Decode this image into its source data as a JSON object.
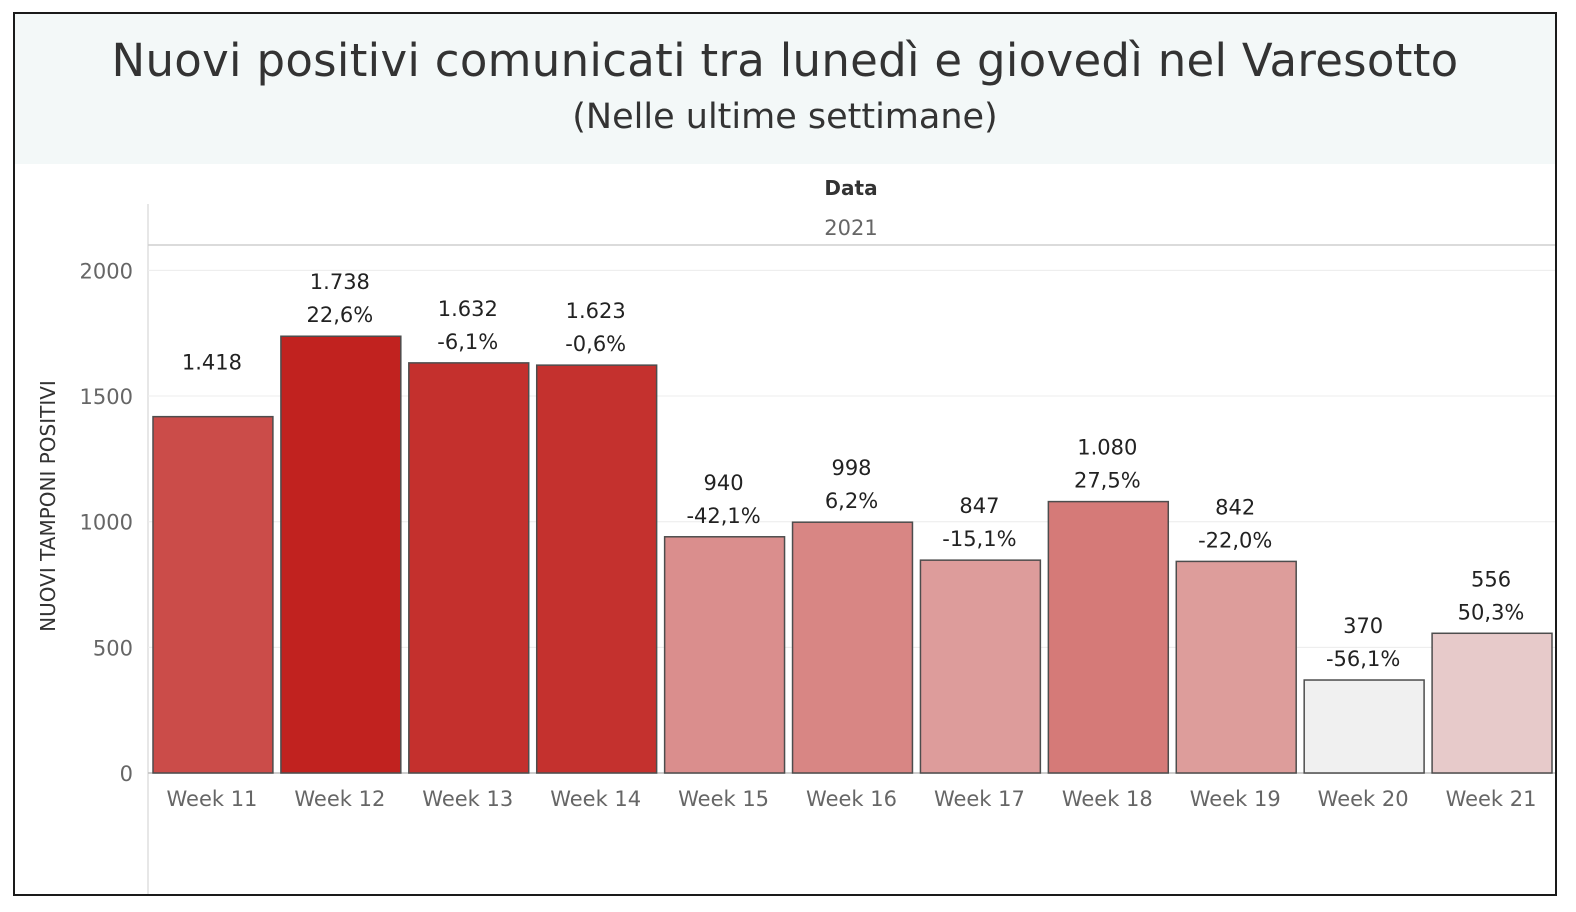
{
  "header": {
    "title": "Nuovi positivi comunicati tra lunedì e giovedì nel Varesotto",
    "subtitle": "(Nelle ultime settimane)"
  },
  "colors": {
    "header_bg": "#f3f8f8",
    "bar_stroke": "#4d4d4d",
    "max_color": "#c1221f",
    "min_color": "#f0f0f0"
  },
  "chart_data": {
    "type": "bar",
    "column_header": "Data",
    "column_value": "2021",
    "ylabel": "NUOVI TAMPONI POSITIVI",
    "xlabel": "",
    "ylim": [
      0,
      2000
    ],
    "yticks": [
      "0",
      "500",
      "1000",
      "1500",
      "2000"
    ],
    "ytick_values": [
      0,
      500,
      1000,
      1500,
      2000
    ],
    "grid": true,
    "categories": [
      "Week 11",
      "Week 12",
      "Week 13",
      "Week 14",
      "Week 15",
      "Week 16",
      "Week 17",
      "Week 18",
      "Week 19",
      "Week 20",
      "Week 21"
    ],
    "values": [
      1418,
      1738,
      1632,
      1623,
      940,
      998,
      847,
      1080,
      842,
      370,
      556
    ],
    "value_labels": [
      "1.418",
      "1.738",
      "1.632",
      "1.623",
      "940",
      "998",
      "847",
      "1.080",
      "842",
      "370",
      "556"
    ],
    "change_labels": [
      "",
      "22,6%",
      "-6,1%",
      "-0,6%",
      "-42,1%",
      "6,2%",
      "-15,1%",
      "27,5%",
      "-22,0%",
      "-56,1%",
      "50,3%"
    ]
  }
}
